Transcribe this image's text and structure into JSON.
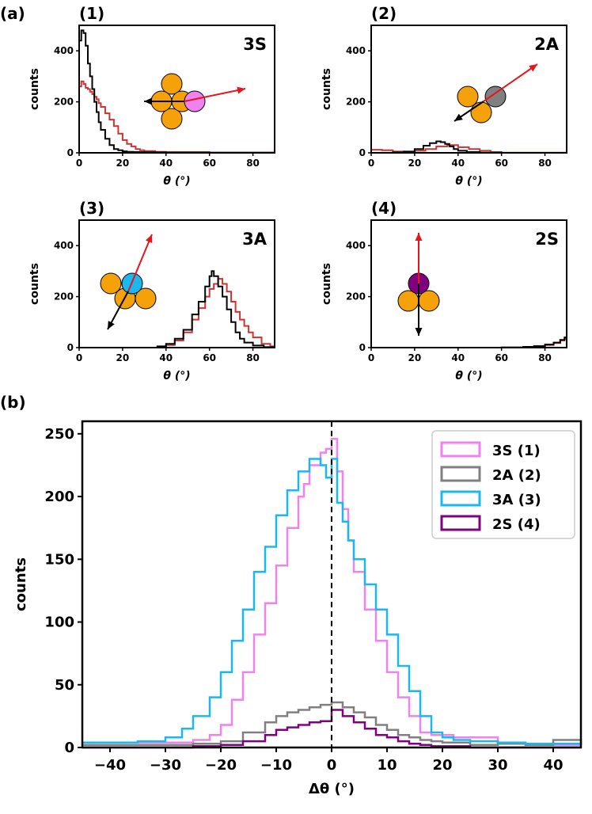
{
  "figure": {
    "panel_a_label": "(a)",
    "panel_b_label": "(b)"
  },
  "colors": {
    "black": "#000000",
    "red": "#cc3333",
    "orange": "#f5a20a",
    "pink": "#ee82ee",
    "gray": "#808080",
    "cyan": "#1ab8ef",
    "purple": "#800080",
    "arrow_red": "#e8141c"
  },
  "chart_data": [
    {
      "id": "sub1",
      "type": "line",
      "subplot_label": "(1)",
      "tag": "3S",
      "xlabel": "θ (°)",
      "ylabel": "counts",
      "xlim": [
        0,
        90
      ],
      "ylim": [
        0,
        500
      ],
      "xticks": [
        "0",
        "20",
        "40",
        "60",
        "80"
      ],
      "yticks": [
        "0",
        "200",
        "400"
      ],
      "diagram": {
        "type": "3S",
        "highlight_color": "#ee82ee"
      },
      "series": [
        {
          "name": "black",
          "x": [
            0,
            1,
            2,
            3,
            4,
            5,
            6,
            7,
            8,
            9,
            10,
            12,
            14,
            16,
            18,
            20,
            22,
            25,
            30,
            40,
            60,
            90
          ],
          "y": [
            440,
            480,
            470,
            420,
            350,
            300,
            250,
            200,
            160,
            120,
            90,
            55,
            30,
            15,
            10,
            6,
            4,
            3,
            2,
            1,
            1,
            0
          ]
        },
        {
          "name": "red",
          "x": [
            0,
            1,
            2,
            3,
            4,
            5,
            6,
            7,
            8,
            9,
            10,
            12,
            14,
            16,
            18,
            20,
            22,
            24,
            26,
            28,
            30,
            35,
            40,
            60,
            90
          ],
          "y": [
            260,
            280,
            270,
            255,
            250,
            240,
            230,
            220,
            210,
            195,
            180,
            155,
            130,
            105,
            75,
            50,
            35,
            25,
            15,
            10,
            7,
            4,
            3,
            1,
            0
          ]
        }
      ]
    },
    {
      "id": "sub2",
      "type": "line",
      "subplot_label": "(2)",
      "tag": "2A",
      "xlabel": "θ (°)",
      "ylabel": "counts",
      "xlim": [
        0,
        90
      ],
      "ylim": [
        0,
        500
      ],
      "xticks": [
        "0",
        "20",
        "40",
        "60",
        "80"
      ],
      "yticks": [
        "0",
        "200",
        "400"
      ],
      "diagram": {
        "type": "2A",
        "highlight_color": "#808080"
      },
      "series": [
        {
          "name": "black",
          "x": [
            0,
            10,
            15,
            20,
            24,
            27,
            30,
            32,
            34,
            36,
            38,
            40,
            44,
            50,
            60,
            90
          ],
          "y": [
            0,
            2,
            5,
            15,
            28,
            38,
            45,
            42,
            35,
            25,
            15,
            8,
            3,
            1,
            0,
            0
          ]
        },
        {
          "name": "red",
          "x": [
            0,
            5,
            10,
            15,
            20,
            25,
            30,
            35,
            40,
            45,
            50,
            55,
            60,
            90
          ],
          "y": [
            12,
            10,
            5,
            4,
            8,
            15,
            25,
            30,
            22,
            15,
            8,
            3,
            1,
            0
          ]
        }
      ]
    },
    {
      "id": "sub3",
      "type": "line",
      "subplot_label": "(3)",
      "tag": "3A",
      "xlabel": "θ (°)",
      "ylabel": "counts",
      "xlim": [
        0,
        90
      ],
      "ylim": [
        0,
        500
      ],
      "xticks": [
        "0",
        "20",
        "40",
        "60",
        "80"
      ],
      "yticks": [
        "0",
        "200",
        "400"
      ],
      "diagram": {
        "type": "3A",
        "highlight_color": "#1ab8ef"
      },
      "series": [
        {
          "name": "black",
          "x": [
            0,
            30,
            36,
            40,
            44,
            48,
            52,
            55,
            58,
            60,
            61,
            62,
            64,
            66,
            68,
            70,
            72,
            74,
            76,
            80,
            85,
            90
          ],
          "y": [
            0,
            0,
            5,
            15,
            35,
            70,
            130,
            180,
            240,
            280,
            300,
            280,
            240,
            200,
            150,
            100,
            60,
            35,
            20,
            8,
            2,
            0
          ]
        },
        {
          "name": "red",
          "x": [
            0,
            30,
            36,
            40,
            44,
            48,
            52,
            55,
            58,
            60,
            62,
            64,
            66,
            68,
            70,
            72,
            74,
            76,
            78,
            80,
            84,
            88,
            90
          ],
          "y": [
            0,
            0,
            3,
            10,
            28,
            60,
            110,
            155,
            200,
            230,
            250,
            270,
            250,
            220,
            180,
            140,
            110,
            85,
            60,
            40,
            15,
            5,
            2
          ]
        }
      ]
    },
    {
      "id": "sub4",
      "type": "line",
      "subplot_label": "(4)",
      "tag": "2S",
      "xlabel": "θ (°)",
      "ylabel": "counts",
      "xlim": [
        0,
        90
      ],
      "ylim": [
        0,
        500
      ],
      "xticks": [
        "0",
        "20",
        "40",
        "60",
        "80"
      ],
      "yticks": [
        "0",
        "200",
        "400"
      ],
      "diagram": {
        "type": "2S",
        "highlight_color": "#800080"
      },
      "series": [
        {
          "name": "black",
          "x": [
            0,
            40,
            60,
            70,
            75,
            80,
            84,
            87,
            89,
            90
          ],
          "y": [
            0,
            0,
            1,
            3,
            6,
            12,
            20,
            30,
            40,
            42
          ]
        },
        {
          "name": "red",
          "x": [
            0,
            40,
            60,
            70,
            75,
            80,
            84,
            87,
            89,
            90
          ],
          "y": [
            0,
            0,
            1,
            3,
            5,
            10,
            18,
            28,
            35,
            38
          ]
        }
      ]
    },
    {
      "id": "main",
      "type": "line",
      "xlabel": "Δθ (°)",
      "ylabel": "counts",
      "xlim": [
        -45,
        45
      ],
      "ylim": [
        0,
        260
      ],
      "xticks": [
        "−40",
        "−30",
        "−20",
        "−10",
        "0",
        "10",
        "20",
        "30",
        "40"
      ],
      "yticks": [
        "0",
        "50",
        "100",
        "150",
        "200",
        "250"
      ],
      "vline_x": 0,
      "legend_position": "top-right",
      "series": [
        {
          "name": "3S (1)",
          "color": "#ee82ee",
          "x": [
            -45,
            -30,
            -25,
            -22,
            -20,
            -18,
            -16,
            -14,
            -12,
            -10,
            -8,
            -6,
            -5,
            -4,
            -2,
            -1,
            0,
            1,
            2,
            3,
            4,
            6,
            8,
            10,
            12,
            14,
            16,
            18,
            20,
            22,
            25,
            30,
            35,
            40,
            45
          ],
          "y": [
            4,
            4,
            6,
            10,
            18,
            38,
            60,
            90,
            115,
            145,
            175,
            200,
            210,
            225,
            235,
            238,
            246,
            220,
            190,
            165,
            140,
            110,
            85,
            60,
            40,
            25,
            12,
            10,
            10,
            8,
            8,
            4,
            3,
            2,
            2
          ]
        },
        {
          "name": "2A (2)",
          "color": "#808080",
          "x": [
            -45,
            -30,
            -25,
            -20,
            -16,
            -12,
            -10,
            -8,
            -6,
            -4,
            -2,
            0,
            2,
            4,
            6,
            8,
            10,
            12,
            14,
            16,
            18,
            20,
            25,
            30,
            35,
            40,
            45
          ],
          "y": [
            2,
            2,
            3,
            5,
            12,
            20,
            25,
            28,
            30,
            32,
            34,
            36,
            32,
            28,
            24,
            18,
            14,
            10,
            8,
            6,
            5,
            4,
            2,
            3,
            2,
            6,
            2
          ]
        },
        {
          "name": "3A (3)",
          "color": "#1ab8ef",
          "x": [
            -45,
            -35,
            -30,
            -27,
            -25,
            -22,
            -20,
            -18,
            -16,
            -14,
            -12,
            -10,
            -8,
            -6,
            -4,
            -2,
            -1,
            0,
            1,
            2,
            3,
            4,
            6,
            8,
            10,
            12,
            14,
            16,
            18,
            20,
            22,
            25,
            30,
            35,
            40,
            45
          ],
          "y": [
            4,
            5,
            8,
            15,
            25,
            40,
            60,
            85,
            110,
            140,
            160,
            185,
            205,
            220,
            230,
            225,
            215,
            230,
            195,
            180,
            165,
            150,
            130,
            110,
            90,
            65,
            45,
            25,
            12,
            8,
            6,
            5,
            4,
            3,
            3,
            4
          ]
        },
        {
          "name": "2S (4)",
          "color": "#800080",
          "x": [
            -45,
            -30,
            -25,
            -20,
            -16,
            -12,
            -10,
            -8,
            -6,
            -4,
            -2,
            0,
            2,
            4,
            6,
            8,
            10,
            12,
            14,
            16,
            18,
            20,
            25,
            30,
            45
          ],
          "y": [
            0,
            0,
            1,
            2,
            5,
            10,
            14,
            16,
            18,
            20,
            21,
            30,
            25,
            20,
            15,
            10,
            8,
            5,
            3,
            2,
            1,
            1,
            0,
            0,
            0
          ]
        }
      ]
    }
  ]
}
